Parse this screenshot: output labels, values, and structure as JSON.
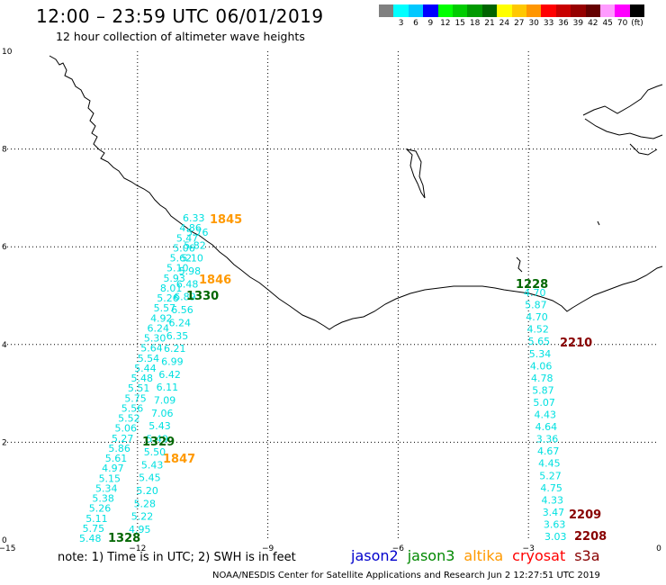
{
  "title": "12:00 – 23:59 UTC 06/01/2019",
  "subtitle": "12 hour collection of altimeter wave heights",
  "colorbar": [
    {
      "color": "#808080",
      "label": ""
    },
    {
      "color": "#00ffff",
      "label": "3"
    },
    {
      "color": "#00c8ff",
      "label": "6"
    },
    {
      "color": "#0000ff",
      "label": "9"
    },
    {
      "color": "#00ff00",
      "label": "12"
    },
    {
      "color": "#00cc00",
      "label": "15"
    },
    {
      "color": "#009900",
      "label": "18"
    },
    {
      "color": "#006400",
      "label": "21"
    },
    {
      "color": "#ffff00",
      "label": "24"
    },
    {
      "color": "#ffc800",
      "label": "27"
    },
    {
      "color": "#ff9600",
      "label": "30"
    },
    {
      "color": "#ff0000",
      "label": "33"
    },
    {
      "color": "#c80000",
      "label": "36"
    },
    {
      "color": "#960000",
      "label": "39"
    },
    {
      "color": "#640000",
      "label": "42"
    },
    {
      "color": "#ff9bff",
      "label": "45"
    },
    {
      "color": "#ff00ff",
      "label": "70"
    },
    {
      "color": "#000000",
      "label": "(ft)"
    }
  ],
  "map": {
    "x_ticks": [
      "−15",
      "−12",
      "−9",
      "−6",
      "−3",
      "0"
    ],
    "y_ticks": [
      "0",
      "2",
      "4",
      "6",
      "8",
      "10"
    ],
    "colors": {
      "jason2": "#0000cc",
      "jason3": "#008800",
      "altika": "#ff9900",
      "cryosat": "#ff0000",
      "s3a": "#880000",
      "swh": "#00e0e0"
    },
    "track1": {
      "heights": [
        "5.48",
        "5.75",
        "5.11",
        "5.26",
        "5.38",
        "5.34",
        "5.15",
        "4.97",
        "5.61",
        "5.86",
        "5.27",
        "5.06",
        "5.52",
        "5.56",
        "5.75",
        "5.51",
        "5.48",
        "5.44",
        "5.54",
        "5.64",
        "5.30",
        "6.24",
        "4.92",
        "5.57",
        "5.26",
        "8.01",
        "5.93",
        "5.10",
        "5.62",
        "5.06",
        "5.47",
        "4.86",
        "6.33"
      ]
    },
    "track2": {
      "heights": [
        "4.95",
        "5.22",
        "5.28",
        "5.20",
        "5.45",
        "5.43",
        "5.50",
        "5.49",
        "5.43",
        "7.06",
        "7.09",
        "6.11",
        "6.42",
        "6.99",
        "6.21",
        "6.35",
        "6.24",
        "6.56",
        "6.89",
        "6.48",
        "5.98",
        "5.10",
        "5.82",
        "5.76"
      ]
    },
    "track3": {
      "heights": [
        "3.03",
        "3.63",
        "3.47",
        "4.33",
        "4.75",
        "5.27",
        "4.45",
        "4.67",
        "3.36",
        "4.64",
        "4.43",
        "5.07",
        "5.87",
        "4.78",
        "4.06",
        "5.34",
        "5.65",
        "4.52",
        "4.70",
        "5.87",
        "4.70"
      ]
    },
    "time_labels": [
      {
        "text": "1845",
        "sat": "altika"
      },
      {
        "text": "1846",
        "sat": "altika"
      },
      {
        "text": "1330",
        "sat": "jason3"
      },
      {
        "text": "1329",
        "sat": "jason3"
      },
      {
        "text": "1847",
        "sat": "altika"
      },
      {
        "text": "1328",
        "sat": "jason3"
      },
      {
        "text": "1228",
        "sat": "jason3"
      },
      {
        "text": "2210",
        "sat": "s3a"
      },
      {
        "text": "2209",
        "sat": "s3a"
      },
      {
        "text": "2208",
        "sat": "s3a"
      }
    ]
  },
  "note": "note: 1) Time is in UTC; 2) SWH is in feet",
  "legend": [
    {
      "name": "jason2",
      "color": "#0000cc"
    },
    {
      "name": "jason3",
      "color": "#008800"
    },
    {
      "name": "altika",
      "color": "#ff9900"
    },
    {
      "name": "cryosat",
      "color": "#ff0000"
    },
    {
      "name": "s3a",
      "color": "#880000"
    }
  ],
  "footer": "NOAA/NESDIS Center for Satellite Applications and Research   Jun  2 12:27:51 UTC 2019"
}
